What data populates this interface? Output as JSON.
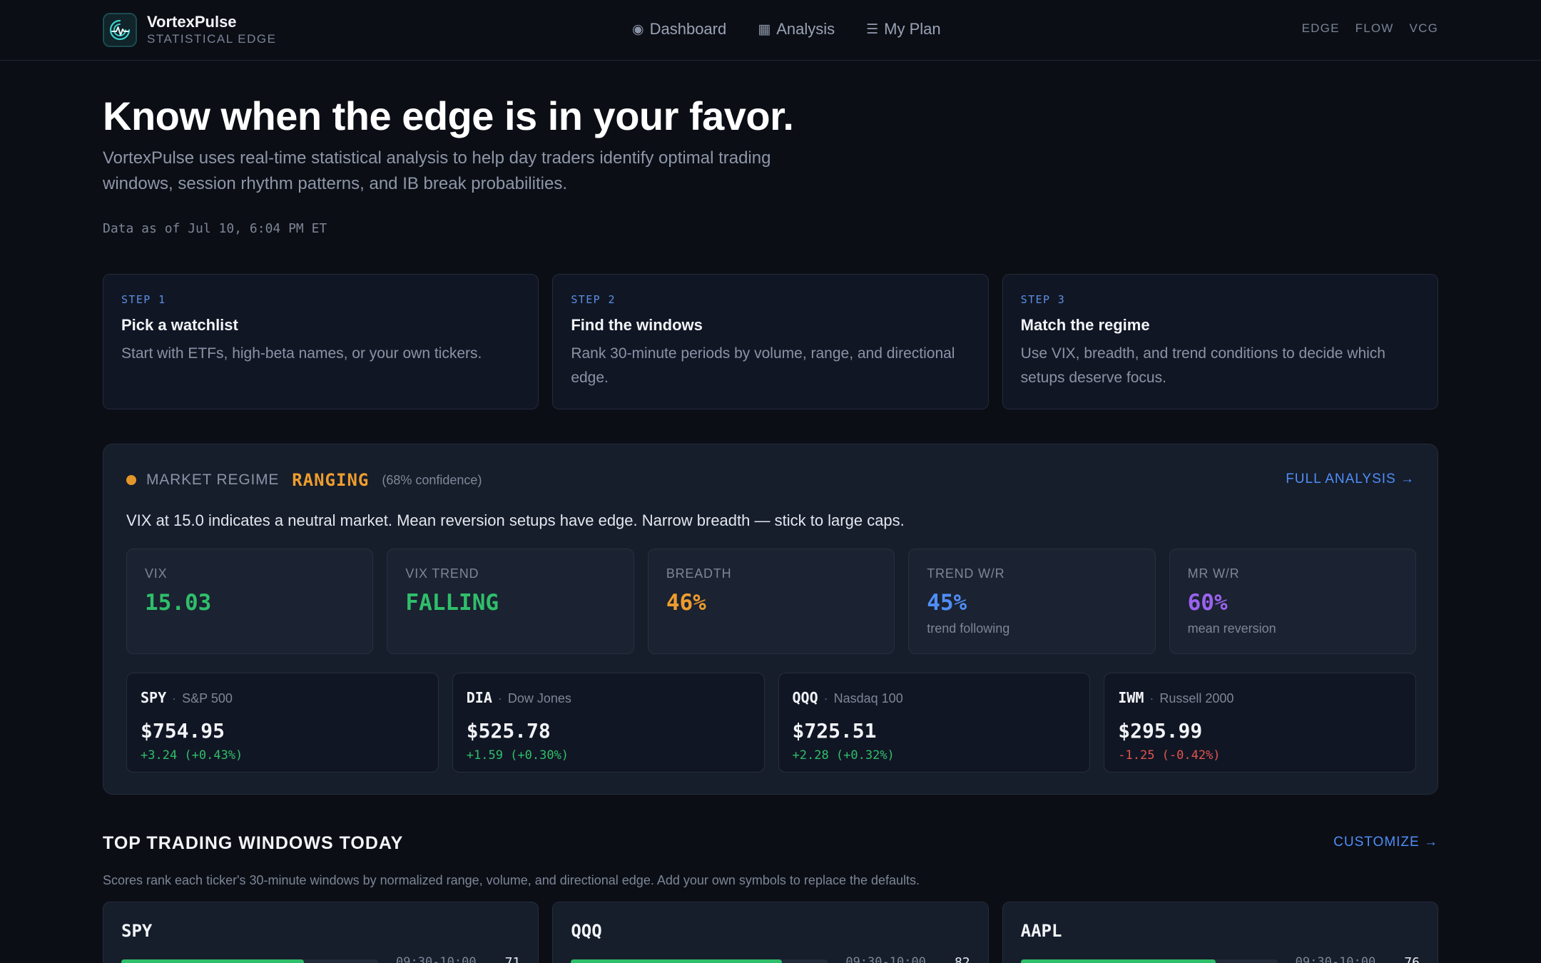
{
  "brand": {
    "name": "VortexPulse",
    "tagline": "STATISTICAL EDGE",
    "logo_icon": "pulse-wave-icon",
    "accent": "#3fd0c9"
  },
  "nav": {
    "items": [
      {
        "label": "Dashboard",
        "glyph": "◉",
        "icon": "radio-dot-icon"
      },
      {
        "label": "Analysis",
        "glyph": "▦",
        "icon": "grid-chart-icon"
      },
      {
        "label": "My Plan",
        "glyph": "☰",
        "icon": "list-icon"
      }
    ]
  },
  "header_tags": [
    "EDGE",
    "FLOW",
    "VCG"
  ],
  "hero": {
    "title": "Know when the edge is in your favor.",
    "description": "VortexPulse uses real-time statistical analysis to help day traders identify optimal trading windows, session rhythm patterns, and IB break probabilities.",
    "as_of": "Data as of Jul 10, 6:04 PM ET"
  },
  "steps": [
    {
      "label": "STEP 1",
      "title": "Pick a watchlist",
      "description": "Start with ETFs, high-beta names, or your own tickers."
    },
    {
      "label": "STEP 2",
      "title": "Find the windows",
      "description": "Rank 30-minute periods by volume, range, and directional edge."
    },
    {
      "label": "STEP 3",
      "title": "Match the regime",
      "description": "Use VIX, breadth, and trend conditions to decide which setups deserve focus."
    }
  ],
  "regime": {
    "label": "MARKET REGIME",
    "state": "RANGING",
    "confidence": "(68% confidence)",
    "link": "FULL ANALYSIS →",
    "note": "VIX at 15.0 indicates a neutral market. Mean reversion setups have edge. Narrow breadth — stick to large caps.",
    "status_color": "#e4962a",
    "stats": [
      {
        "label": "VIX",
        "value": "15.03",
        "sub": "",
        "color": "#2fbf6a"
      },
      {
        "label": "VIX TREND",
        "value": "FALLING",
        "sub": "",
        "color": "#2fbf6a"
      },
      {
        "label": "BREADTH",
        "value": "46%",
        "sub": "",
        "color": "#ee9d2e"
      },
      {
        "label": "TREND W/R",
        "value": "45%",
        "sub": "trend following",
        "color": "#4f8ef7"
      },
      {
        "label": "MR W/R",
        "value": "60%",
        "sub": "mean reversion",
        "color": "#9b63f0"
      }
    ],
    "tickers": [
      {
        "symbol": "SPY",
        "name": "S&P 500",
        "price": "$754.95",
        "change": "+3.24 (+0.43%)",
        "direction": "up"
      },
      {
        "symbol": "DIA",
        "name": "Dow Jones",
        "price": "$525.78",
        "change": "+1.59 (+0.30%)",
        "direction": "up"
      },
      {
        "symbol": "QQQ",
        "name": "Nasdaq 100",
        "price": "$725.51",
        "change": "+2.28 (+0.32%)",
        "direction": "up"
      },
      {
        "symbol": "IWM",
        "name": "Russell 2000",
        "price": "$295.99",
        "change": "-1.25 (-0.42%)",
        "direction": "down"
      }
    ]
  },
  "top_windows": {
    "title": "TOP TRADING WINDOWS TODAY",
    "link": "CUSTOMIZE →",
    "description": "Scores rank each ticker's 30-minute windows by normalized range, volume, and directional edge. Add your own symbols to replace the defaults.",
    "cards": [
      {
        "symbol": "SPY",
        "window": "09:30-10:00",
        "score": "71",
        "fill": 0.71
      },
      {
        "symbol": "QQQ",
        "window": "09:30-10:00",
        "score": "82",
        "fill": 0.82
      },
      {
        "symbol": "AAPL",
        "window": "09:30-10:00",
        "score": "76",
        "fill": 0.76
      }
    ]
  }
}
